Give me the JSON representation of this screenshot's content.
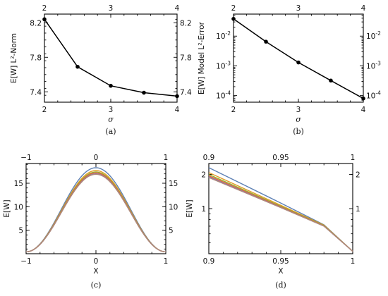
{
  "chart_data": [
    {
      "id": "a",
      "type": "line",
      "caption": "(a)",
      "ylabel": "E[W] L²-Norm",
      "xlabel": "σ",
      "x": [
        2,
        2.5,
        3,
        3.5,
        4
      ],
      "series": [
        {
          "values": [
            8.24,
            7.69,
            7.47,
            7.39,
            7.35
          ]
        }
      ],
      "xlim": [
        2,
        4
      ],
      "ylim": [
        7.28,
        8.3
      ],
      "xticks": [
        2,
        3,
        4
      ],
      "xtick_labels": [
        "2",
        "3",
        "4"
      ],
      "yticks": [
        7.4,
        7.8,
        8.2
      ],
      "ytick_labels": [
        "7.4",
        "7.8",
        "8.2"
      ],
      "markers": true,
      "grid": false,
      "line_color": "#000000"
    },
    {
      "id": "b",
      "type": "line",
      "caption": "(b)",
      "ylabel": "E[W] Model L²-Error",
      "xlabel": "σ",
      "yscale": "log",
      "x": [
        2,
        2.5,
        3,
        3.5,
        4
      ],
      "series": [
        {
          "values": [
            0.038,
            0.0065,
            0.0013,
            0.00032,
            8e-05
          ]
        }
      ],
      "xlim": [
        2,
        4
      ],
      "ylim": [
        6e-05,
        0.055
      ],
      "xticks": [
        2,
        3,
        4
      ],
      "xtick_labels": [
        "2",
        "3",
        "4"
      ],
      "yticks": [
        0.0001,
        0.001,
        0.01
      ],
      "ytick_labels": [
        {
          "base": "10",
          "exp": "-4"
        },
        {
          "base": "10",
          "exp": "-3"
        },
        {
          "base": "10",
          "exp": "-2"
        }
      ],
      "markers": true,
      "grid": false,
      "line_color": "#000000"
    },
    {
      "id": "c",
      "type": "line",
      "caption": "(c)",
      "ylabel": "E[W]",
      "xlabel": "X",
      "xlim": [
        -1,
        1
      ],
      "ylim": [
        0,
        19.2
      ],
      "xticks": [
        -1,
        0,
        1
      ],
      "xtick_labels": [
        "−1",
        "0",
        "1"
      ],
      "yticks": [
        5,
        10,
        15
      ],
      "ytick_labels": [
        "5",
        "10",
        "15"
      ],
      "curve_shape": "cos",
      "series": [
        {
          "peak": 18.3,
          "end": 0.4,
          "color": "#5e81b5"
        },
        {
          "peak": 17.7,
          "end": 0.4,
          "color": "#e19c24"
        },
        {
          "peak": 17.4,
          "end": 0.4,
          "color": "#8fb032"
        },
        {
          "peak": 17.2,
          "end": 0.4,
          "color": "#eb6235"
        },
        {
          "peak": 17.0,
          "end": 0.4,
          "color": "#8778b3"
        },
        {
          "peak": 16.9,
          "end": 0.4,
          "color": "#b08b7a"
        }
      ],
      "grid": false
    },
    {
      "id": "d",
      "type": "line",
      "caption": "(d)",
      "ylabel": "E[W]",
      "xlabel": "X",
      "yscale": "log",
      "xlim": [
        0.9,
        1.0
      ],
      "ylim": [
        0.4,
        2.5
      ],
      "xticks": [
        0.9,
        0.95,
        1.0
      ],
      "xtick_labels": [
        "0.9",
        "0.95",
        "1"
      ],
      "yticks": [
        1,
        2
      ],
      "ytick_labels": [
        "1",
        "2"
      ],
      "series": [
        {
          "x": [
            0.9,
            0.95,
            0.98,
            1.0
          ],
          "values": [
            2.3,
            1.12,
            0.72,
            0.42
          ],
          "color": "#5e81b5"
        },
        {
          "x": [
            0.9,
            0.95,
            0.98,
            1.0
          ],
          "values": [
            2.08,
            1.07,
            0.715,
            0.42
          ],
          "color": "#e19c24"
        },
        {
          "x": [
            0.9,
            0.95,
            0.98,
            1.0
          ],
          "values": [
            2.0,
            1.05,
            0.71,
            0.42
          ],
          "color": "#8fb032"
        },
        {
          "x": [
            0.9,
            0.95,
            0.98,
            1.0
          ],
          "values": [
            1.95,
            1.035,
            0.705,
            0.42
          ],
          "color": "#eb6235"
        },
        {
          "x": [
            0.9,
            0.95,
            0.98,
            1.0
          ],
          "values": [
            1.91,
            1.025,
            0.7,
            0.42
          ],
          "color": "#8778b3"
        },
        {
          "x": [
            0.9,
            0.95,
            0.98,
            1.0
          ],
          "values": [
            1.88,
            1.02,
            0.7,
            0.42
          ],
          "color": "#b08b7a"
        }
      ],
      "grid": false
    }
  ]
}
